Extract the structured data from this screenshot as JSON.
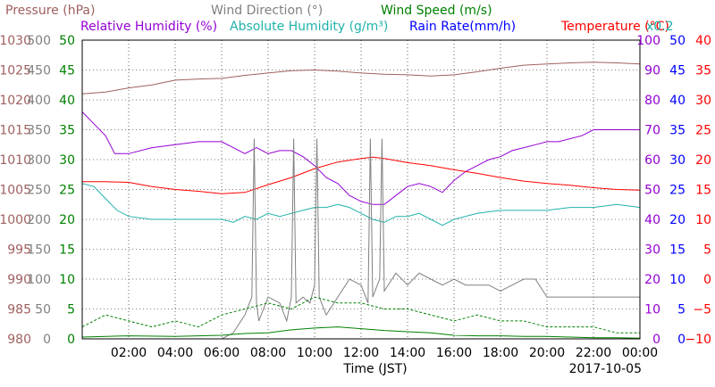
{
  "chart_data": {
    "type": "line",
    "date": "2017-10-05",
    "xlabel": "Time (JST)",
    "x_ticks": [
      "02:00",
      "04:00",
      "06:00",
      "08:00",
      "10:00",
      "12:00",
      "14:00",
      "16:00",
      "18:00",
      "20:00",
      "22:00",
      "00:00"
    ],
    "title_lines": [
      [
        {
          "text": "Pressure (hPa)",
          "color": "#a06060"
        },
        {
          "text": "Wind Direction (°)",
          "color": "#808080"
        },
        {
          "text": "Wind Speed (m/s)",
          "color": "#008000"
        }
      ],
      [
        {
          "text": "Relative Humidity (%)",
          "color": "#9400d3"
        },
        {
          "text": "Absolute Humidity (g/m³)",
          "color": "#20b2aa"
        },
        {
          "text": "Rain Rate(mm/h)",
          "color": "#0000ff"
        },
        {
          "text": "Temperature (°C)",
          "color": "#ff0000"
        },
        {
          "text": "x0.2",
          "color": "#20b2aa"
        }
      ]
    ],
    "axes": {
      "pressure": {
        "color": "#a06060",
        "ticks": [
          "1030",
          "1025",
          "1020",
          "1015",
          "1010",
          "1005",
          "1000",
          "995",
          "990",
          "985",
          "980"
        ]
      },
      "wind_direction": {
        "color": "#808080",
        "ticks": [
          "500",
          "450",
          "400",
          "350",
          "300",
          "250",
          "200",
          "150",
          "100",
          "50",
          "0"
        ]
      },
      "wind_speed": {
        "color": "#008000",
        "ticks": [
          "50",
          "45",
          "40",
          "35",
          "30",
          "25",
          "20",
          "15",
          "10",
          "5",
          "0"
        ]
      },
      "relative_humidity": {
        "color": "#9400d3",
        "ticks": [
          "100",
          "90",
          "80",
          "70",
          "60",
          "50",
          "40",
          "30",
          "20",
          "10",
          "0"
        ]
      },
      "rain_rate": {
        "color": "#0000ff",
        "ticks": [
          "50",
          "45",
          "40",
          "35",
          "30",
          "25",
          "20",
          "15",
          "10",
          "5",
          "0"
        ]
      },
      "temperature": {
        "color": "#ff0000",
        "ticks": [
          "40",
          "35",
          "30",
          "25",
          "20",
          "15",
          "10",
          "5",
          "0",
          "−5",
          "−10"
        ]
      }
    },
    "series": [
      {
        "name": "Pressure (hPa)",
        "axis": "pressure",
        "color": "#a06060",
        "x": [
          0,
          1,
          2,
          3,
          4,
          5,
          6,
          7,
          8,
          9,
          10,
          11,
          12,
          13,
          14,
          15,
          16,
          17,
          18,
          19,
          20,
          21,
          22,
          23,
          24
        ],
        "y": [
          1021,
          1021.3,
          1022,
          1022.5,
          1023.3,
          1023.5,
          1023.6,
          1024.1,
          1024.5,
          1024.9,
          1025,
          1024.8,
          1024.5,
          1024.3,
          1024.2,
          1024.0,
          1024.2,
          1024.7,
          1025.3,
          1025.8,
          1026.0,
          1026.2,
          1026.3,
          1026.2,
          1026.0
        ]
      },
      {
        "name": "Relative Humidity (%)",
        "axis": "relative_humidity",
        "color": "#9400d3",
        "x": [
          0,
          0.5,
          1,
          1.4,
          2,
          3,
          4,
          5,
          6,
          6.5,
          7,
          7.5,
          8,
          8.5,
          9,
          9.5,
          10,
          10.5,
          11,
          11.5,
          12,
          12.5,
          13,
          13.5,
          14,
          14.5,
          15,
          15.5,
          16,
          16.5,
          17,
          17.5,
          18,
          18.5,
          19,
          19.5,
          20,
          20.5,
          21,
          21.5,
          22,
          23,
          24
        ],
        "y": [
          76,
          72,
          68,
          62,
          62,
          64,
          65,
          66,
          66,
          64,
          62,
          64,
          62,
          63,
          63,
          61,
          58,
          54,
          52,
          48,
          46,
          45,
          45,
          48,
          51,
          52,
          51,
          49,
          53,
          56,
          58,
          60,
          61,
          63,
          64,
          65,
          66,
          66,
          67,
          68,
          70,
          70,
          70
        ]
      },
      {
        "name": "Absolute Humidity (g/m³)",
        "axis": "relative_humidity",
        "color": "#20b2aa",
        "x": [
          0,
          0.5,
          1,
          1.5,
          2,
          3,
          4,
          5,
          6,
          6.5,
          7,
          7.5,
          8,
          8.5,
          9,
          9.5,
          10,
          10.5,
          11,
          11.5,
          12,
          12.5,
          13,
          13.5,
          14,
          14.5,
          15,
          15.5,
          16,
          17,
          18,
          19,
          20,
          21,
          22,
          23,
          24
        ],
        "y": [
          52,
          51,
          47,
          43,
          41,
          40,
          40,
          40,
          40,
          39,
          41,
          40,
          42,
          41,
          42,
          43,
          44,
          44,
          45,
          44,
          42,
          40,
          39,
          41,
          41,
          42,
          40,
          38,
          40,
          42,
          43,
          43,
          43,
          44,
          44,
          45,
          44
        ]
      },
      {
        "name": "Temperature (°C)",
        "axis": "temperature",
        "color": "#ff0000",
        "x": [
          0,
          1,
          2,
          3,
          4,
          5,
          6,
          7,
          8,
          9,
          10,
          11,
          12,
          12.5,
          13,
          14,
          15,
          16,
          17,
          18,
          19,
          20,
          21,
          22,
          23,
          24
        ],
        "y": [
          16.3,
          16.3,
          16.2,
          15.5,
          15.0,
          14.7,
          14.3,
          14.5,
          15.8,
          17.0,
          18.5,
          19.6,
          20.2,
          20.4,
          20.2,
          19.5,
          19.0,
          18.3,
          17.7,
          17.0,
          16.4,
          16.0,
          15.7,
          15.3,
          15.0,
          14.9
        ]
      },
      {
        "name": "Wind Direction (°)",
        "axis": "wind_direction",
        "color": "#808080",
        "x": [
          0,
          1,
          2,
          3,
          4,
          5,
          6,
          6.5,
          7,
          7.3,
          7.4,
          7.5,
          7.6,
          8,
          8.5,
          8.8,
          9,
          9.1,
          9.2,
          9.5,
          9.8,
          10,
          10.1,
          10.2,
          10.5,
          11,
          11.5,
          12,
          12.3,
          12.4,
          12.5,
          12.8,
          12.9,
          13,
          13.5,
          14,
          14.5,
          15,
          15.5,
          16,
          16.5,
          17,
          17.5,
          18,
          18.5,
          19,
          19.5,
          20,
          21,
          22,
          23,
          24
        ],
        "y": [
          0,
          0,
          0,
          0,
          0,
          0,
          0,
          10,
          40,
          70,
          335,
          60,
          30,
          70,
          60,
          30,
          70,
          335,
          60,
          70,
          60,
          90,
          335,
          70,
          40,
          70,
          100,
          90,
          60,
          335,
          70,
          100,
          335,
          80,
          110,
          90,
          110,
          100,
          90,
          100,
          90,
          90,
          90,
          80,
          90,
          100,
          100,
          70,
          70,
          70,
          70,
          70
        ]
      },
      {
        "name": "Wind Speed (m/s)",
        "axis": "wind_speed",
        "color": "#008000",
        "x": [
          0,
          2,
          4,
          6,
          7,
          8,
          9,
          10,
          11,
          12,
          13,
          14,
          15,
          16,
          17,
          18,
          19,
          20,
          21,
          22,
          23,
          24
        ],
        "y": [
          0.3,
          0.5,
          0.4,
          0.6,
          0.9,
          1.0,
          1.5,
          1.8,
          2.0,
          1.7,
          1.4,
          1.2,
          1.0,
          0.6,
          0.5,
          0.5,
          0.4,
          0.4,
          0.3,
          0.2,
          0.2,
          0.1
        ]
      },
      {
        "name": "Wind Speed gust (m/s)",
        "axis": "wind_speed",
        "color": "#008000",
        "dashed": true,
        "x": [
          0,
          1,
          2,
          3,
          4,
          5,
          6,
          7,
          8,
          9,
          10,
          11,
          12,
          13,
          14,
          15,
          16,
          17,
          18,
          19,
          20,
          21,
          22,
          23,
          24
        ],
        "y": [
          2,
          4,
          3,
          2,
          3,
          2,
          4,
          5,
          6,
          5,
          7,
          6,
          6,
          5,
          5,
          4,
          3,
          4,
          3,
          3,
          2,
          2,
          2,
          1,
          1
        ]
      },
      {
        "name": "Rain Rate(mm/h)",
        "axis": "rain_rate",
        "color": "#0000ff",
        "x": [
          0,
          24
        ],
        "y": [
          0,
          0
        ]
      }
    ],
    "x_range": [
      0,
      24
    ],
    "y_ticks_count": 11,
    "grid": true
  }
}
